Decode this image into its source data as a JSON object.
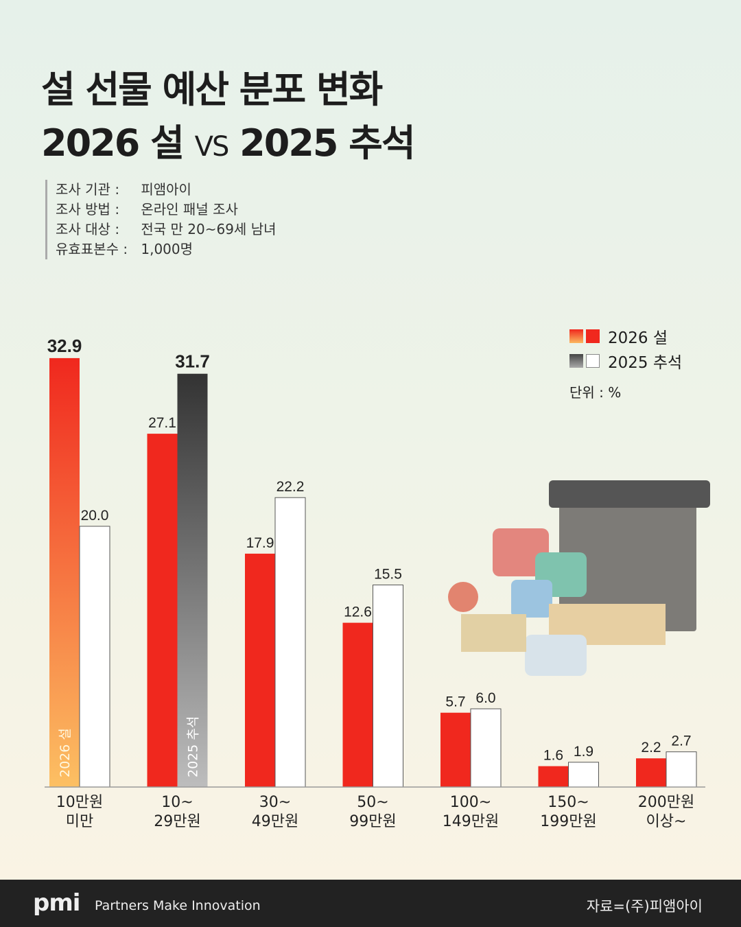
{
  "title": {
    "line1": "설 선물 예산 분포 변화",
    "line2_a": "2026 설",
    "line2_vs": "VS",
    "line2_b": "2025 추석"
  },
  "survey": [
    {
      "key": "조사 기관 :",
      "value": "피앰아이"
    },
    {
      "key": "조사 방법 :",
      "value": "온라인 패널 조사"
    },
    {
      "key": "조사 대상 :",
      "value": "전국 만 20~69세 남녀"
    },
    {
      "key": "유효표본수 :",
      "value": "1,000명"
    }
  ],
  "legend": {
    "series1": "2026 설",
    "series2": "2025 추석",
    "unit": "단위 : %"
  },
  "colors": {
    "red": "#f0281e",
    "white": "#ffffff",
    "dark": "#333333"
  },
  "chart_data": {
    "type": "bar",
    "title": "설 선물 예산 분포 변화",
    "categories": [
      [
        "10만원",
        "미만"
      ],
      [
        "10~",
        "29만원"
      ],
      [
        "30~",
        "49만원"
      ],
      [
        "50~",
        "99만원"
      ],
      [
        "100~",
        "149만원"
      ],
      [
        "150~",
        "199만원"
      ],
      [
        "200만원",
        "이상~"
      ]
    ],
    "series": [
      {
        "name": "2026 설",
        "values": [
          32.9,
          27.1,
          17.9,
          12.6,
          5.7,
          1.6,
          2.2
        ]
      },
      {
        "name": "2025 추석",
        "values": [
          20.0,
          31.7,
          22.2,
          15.5,
          6.0,
          1.9,
          2.7
        ]
      }
    ],
    "ylim": [
      0,
      35
    ],
    "inside_labels": {
      "s1": "2026 설",
      "s2": "2025 추석"
    },
    "ylabel": "%"
  },
  "footer": {
    "logo": "pmi",
    "tagline": "Partners Make Innovation",
    "source": "자료=(주)피앰아이"
  }
}
